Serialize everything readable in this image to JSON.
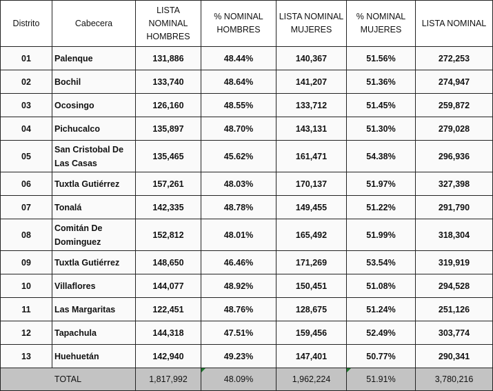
{
  "headers": [
    "Distrito",
    "Cabecera",
    "LISTA NOMINAL HOMBRES",
    "% NOMINAL HOMBRES",
    "LISTA NOMINAL MUJERES",
    "% NOMINAL MUJERES",
    "LISTA NOMINAL"
  ],
  "rows": [
    [
      "01",
      "Palenque",
      "131,886",
      "48.44%",
      "140,367",
      "51.56%",
      "272,253"
    ],
    [
      "02",
      "Bochil",
      "133,740",
      "48.64%",
      "141,207",
      "51.36%",
      "274,947"
    ],
    [
      "03",
      "Ocosingo",
      "126,160",
      "48.55%",
      "133,712",
      "51.45%",
      "259,872"
    ],
    [
      "04",
      "Pichucalco",
      "135,897",
      "48.70%",
      "143,131",
      "51.30%",
      "279,028"
    ],
    [
      "05",
      "San Cristobal De Las Casas",
      "135,465",
      "45.62%",
      "161,471",
      "54.38%",
      "296,936"
    ],
    [
      "06",
      "Tuxtla Gutiérrez",
      "157,261",
      "48.03%",
      "170,137",
      "51.97%",
      "327,398"
    ],
    [
      "07",
      "Tonalá",
      "142,335",
      "48.78%",
      "149,455",
      "51.22%",
      "291,790"
    ],
    [
      "08",
      "Comitán De Dominguez",
      "152,812",
      "48.01%",
      "165,492",
      "51.99%",
      "318,304"
    ],
    [
      "09",
      "Tuxtla Gutiérrez",
      "148,650",
      "46.46%",
      "171,269",
      "53.54%",
      "319,919"
    ],
    [
      "10",
      "Villaflores",
      "144,077",
      "48.92%",
      "150,451",
      "51.08%",
      "294,528"
    ],
    [
      "11",
      "Las Margaritas",
      "122,451",
      "48.76%",
      "128,675",
      "51.24%",
      "251,126"
    ],
    [
      "12",
      "Tapachula",
      "144,318",
      "47.51%",
      "159,456",
      "52.49%",
      "303,774"
    ],
    [
      "13",
      "Huehuetán",
      "142,940",
      "49.23%",
      "147,401",
      "50.77%",
      "290,341"
    ]
  ],
  "total": {
    "label": "TOTAL",
    "hombres": "1,817,992",
    "pct_hombres": "48.09%",
    "mujeres": "1,962,224",
    "pct_mujeres": "51.91%",
    "lista": "3,780,216"
  },
  "colors": {
    "total_bg": "#c3c3c3",
    "error_marker": "#1e7a2e"
  }
}
